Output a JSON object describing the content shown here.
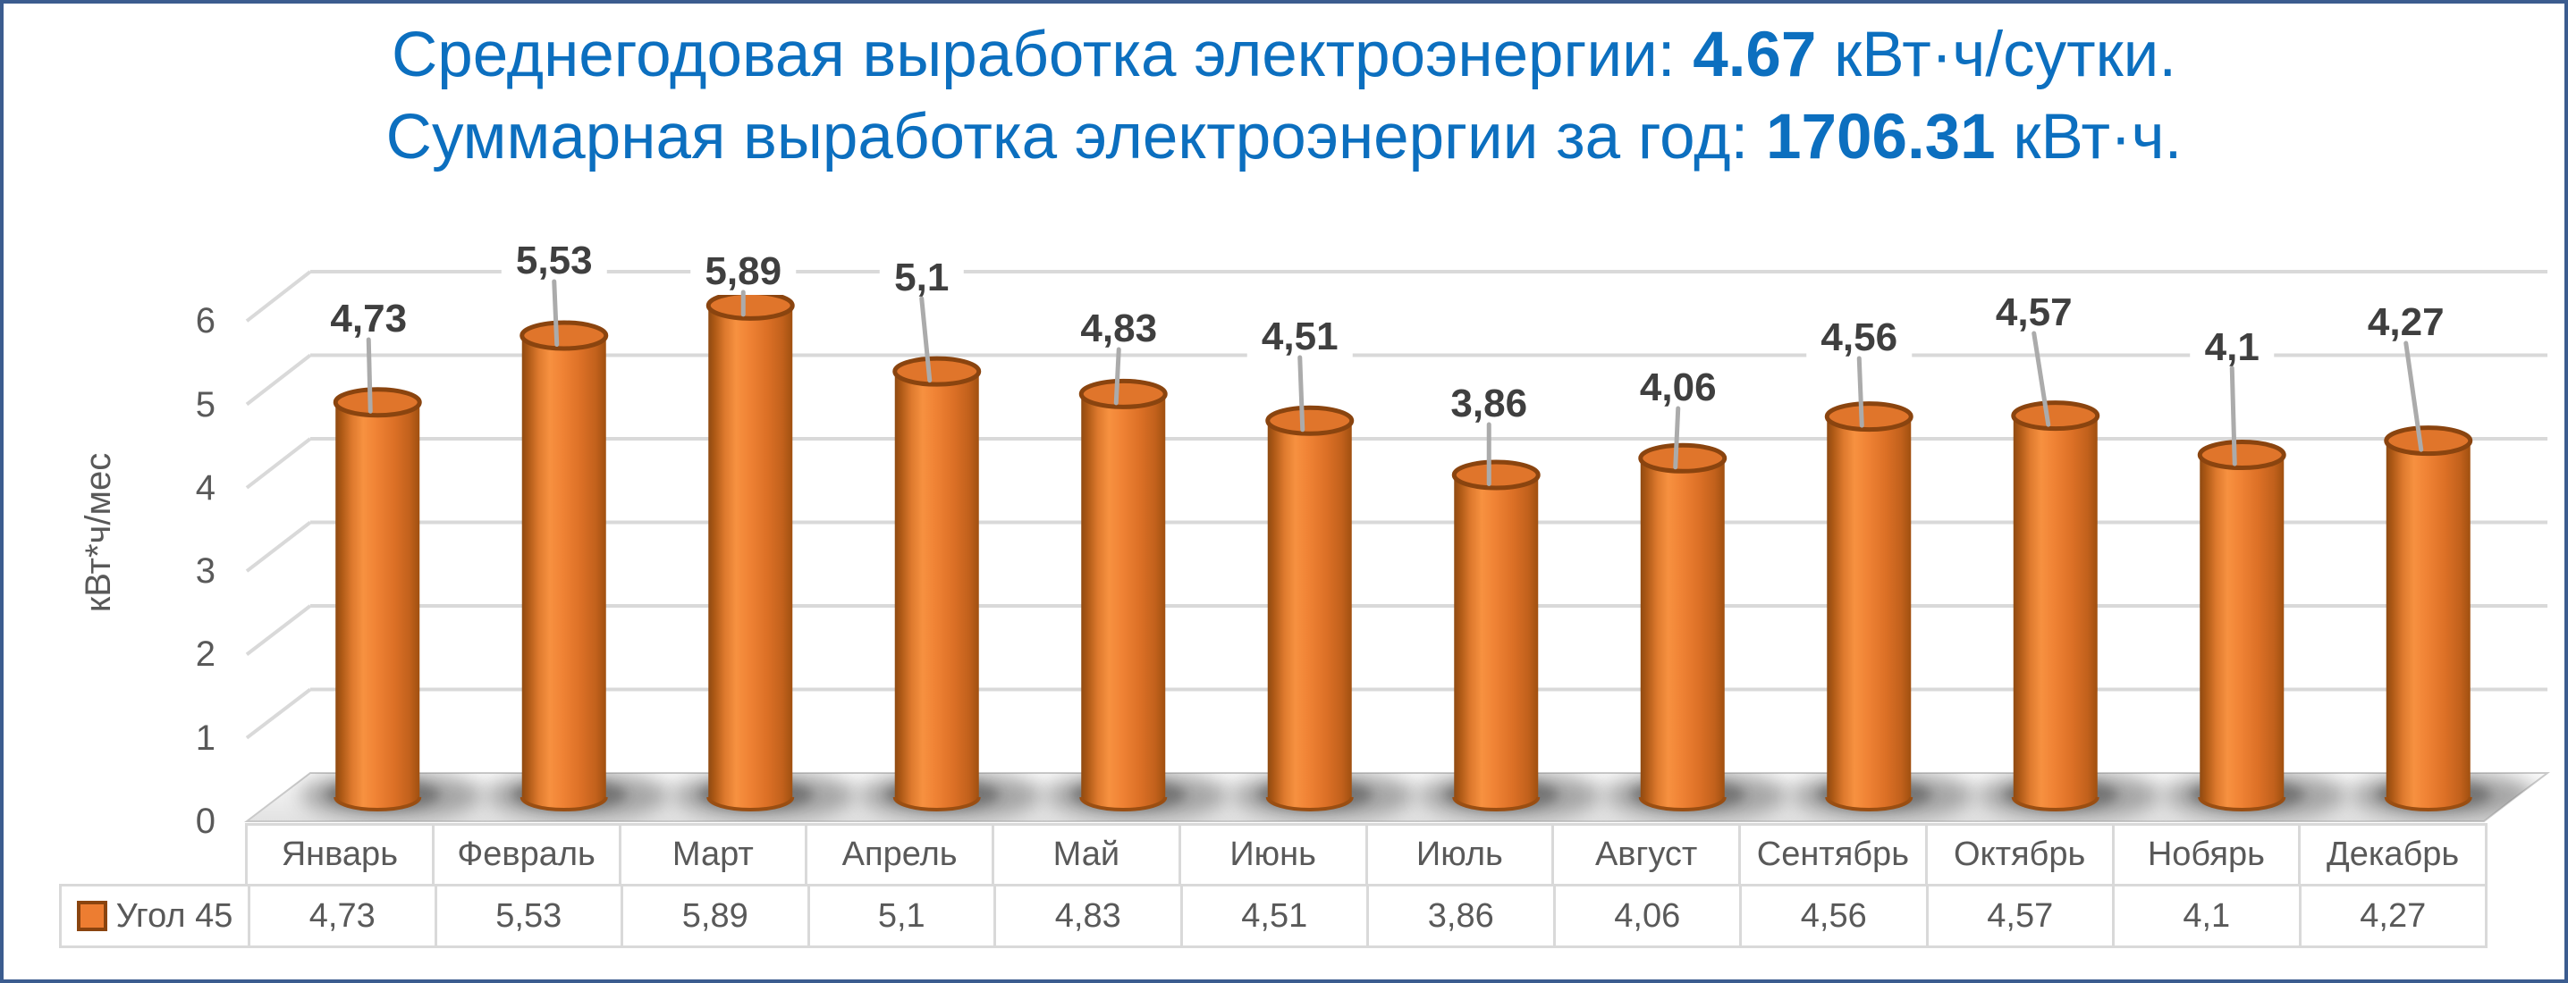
{
  "page": {
    "background": "#FFFFFF",
    "border_color": "#3B5C8F"
  },
  "title": {
    "color": "#0C6FBF",
    "line1": {
      "prefix": "Среднегодовая выработка электроэнергии: ",
      "value": "4.67",
      "suffix": " кВт·ч/сутки."
    },
    "line2": {
      "prefix": "Суммарная выработка электроэнергии за год: ",
      "value": "1706.31",
      "suffix": " кВт·ч."
    }
  },
  "chart_data": {
    "type": "bar",
    "subtype": "cylinder-3d",
    "title": "",
    "xlabel": "",
    "ylabel": "кВт*ч/мес",
    "ylim": [
      0,
      6
    ],
    "yticks": [
      0,
      1,
      2,
      3,
      4,
      5,
      6
    ],
    "grid": true,
    "legend_position": "table-row-left",
    "categories": [
      "Январь",
      "Февраль",
      "Март",
      "Апрель",
      "Май",
      "Июнь",
      "Июль",
      "Август",
      "Сентябрь",
      "Октябрь",
      "Нобярь",
      "Декабрь"
    ],
    "series": [
      {
        "name": "Угол 45",
        "values": [
          4.73,
          5.53,
          5.89,
          5.1,
          4.83,
          4.51,
          3.86,
          4.06,
          4.56,
          4.57,
          4.1,
          4.27
        ],
        "labels": [
          "4,73",
          "5,53",
          "5,89",
          "5,1",
          "4,83",
          "4,51",
          "3,86",
          "4,06",
          "4,56",
          "4,57",
          "4,1",
          "4,27"
        ],
        "color": "#ED7D31"
      }
    ]
  },
  "colors": {
    "bar_fill": "#ED7D31",
    "bar_rim": "#8A440F",
    "gridline": "#D9D9D9",
    "leader_line": "#ABABAB",
    "tick_text": "#595959",
    "data_label_text": "#3F3F3F",
    "table_border": "#D9D9D9",
    "floor_light": "#FAFAFA",
    "floor_dark": "#E2E2E2"
  }
}
